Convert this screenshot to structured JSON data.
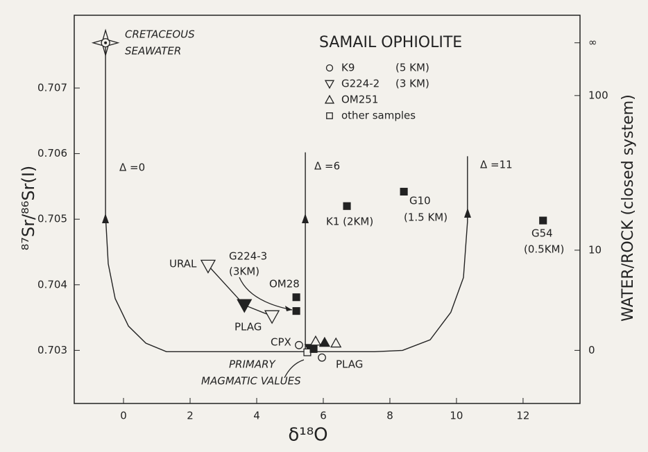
{
  "chart_data": {
    "type": "scatter",
    "xlabel": "δ¹⁸O",
    "ylabel": "⁸⁷Sr/⁸⁶Sr(I)",
    "y2label": "WATER/ROCK (closed system)",
    "legend_title": "SAMAIL OPHIOLITE",
    "xlim": [
      -1.48,
      13.71
    ],
    "ylim": [
      0.70219,
      0.70811
    ],
    "xticks": [
      0,
      2,
      4,
      6,
      8,
      10,
      12
    ],
    "yticks": [
      0.703,
      0.704,
      0.705,
      0.706,
      0.707
    ],
    "y2ticks": [
      0,
      10,
      100,
      {
        "value": null,
        "label": "∞"
      }
    ],
    "seawater": {
      "label": [
        "CRETACEOUS",
        "SEAWATER"
      ],
      "x": -0.54,
      "y": 0.70769
    },
    "curves": [
      {
        "name": "Δ =0",
        "x": [
          -0.54,
          -0.54,
          -0.46,
          -0.25,
          0.15,
          0.67,
          1.29,
          2.54,
          5.46
        ],
        "y": [
          0.70762,
          0.70506,
          0.70432,
          0.70379,
          0.70337,
          0.70311,
          0.70298,
          0.70298,
          0.70298
        ]
      },
      {
        "name": "Δ =6",
        "x": [
          5.46,
          5.46
        ],
        "y": [
          0.70298,
          0.70602
        ]
      },
      {
        "name": "Δ =11",
        "x": [
          5.46,
          7.54,
          8.38,
          9.21,
          9.83,
          10.21,
          10.33,
          10.33
        ],
        "y": [
          0.70298,
          0.70298,
          0.703,
          0.70316,
          0.70358,
          0.70411,
          0.70496,
          0.70596
        ]
      }
    ],
    "series": [
      {
        "name": "K9",
        "depth": "(5 KM)",
        "marker": "circle",
        "color": "#222",
        "x": [
          5.27,
          5.96
        ],
        "y": [
          0.70308,
          0.70289
        ],
        "filled": [
          false,
          false
        ]
      },
      {
        "name": "G224-2",
        "depth": "(3 KM)",
        "marker": "triangle-down",
        "color": "#222",
        "x": [
          2.54,
          3.63,
          4.46,
          5.6
        ],
        "y": [
          0.70429,
          0.70369,
          0.70352,
          0.70303
        ],
        "filled": [
          false,
          true,
          false,
          true
        ]
      },
      {
        "name": "OM251",
        "marker": "triangle-up",
        "color": "#222",
        "x": [
          5.77,
          6.04,
          6.38
        ],
        "y": [
          0.70314,
          0.70312,
          0.70311
        ],
        "filled": [
          false,
          true,
          false
        ]
      },
      {
        "name": "other samples",
        "marker": "square",
        "color": "#222",
        "x": [
          5.19,
          5.19,
          6.71,
          8.42,
          12.6,
          5.52,
          5.71
        ],
        "y": [
          0.70381,
          0.7036,
          0.7052,
          0.70542,
          0.70498,
          0.70297,
          0.70302
        ],
        "filled": [
          true,
          true,
          true,
          true,
          true,
          false,
          true
        ]
      }
    ],
    "annotations": [
      "URAL",
      "G224-3",
      "(3KM)",
      "OM28",
      "PLAG",
      "CPX",
      "PLAG",
      "PRIMARY",
      "MAGMATIC VALUES",
      "K1 (2KM)",
      "G10",
      "(1.5 KM)",
      "G54",
      "(0.5KM)"
    ]
  }
}
